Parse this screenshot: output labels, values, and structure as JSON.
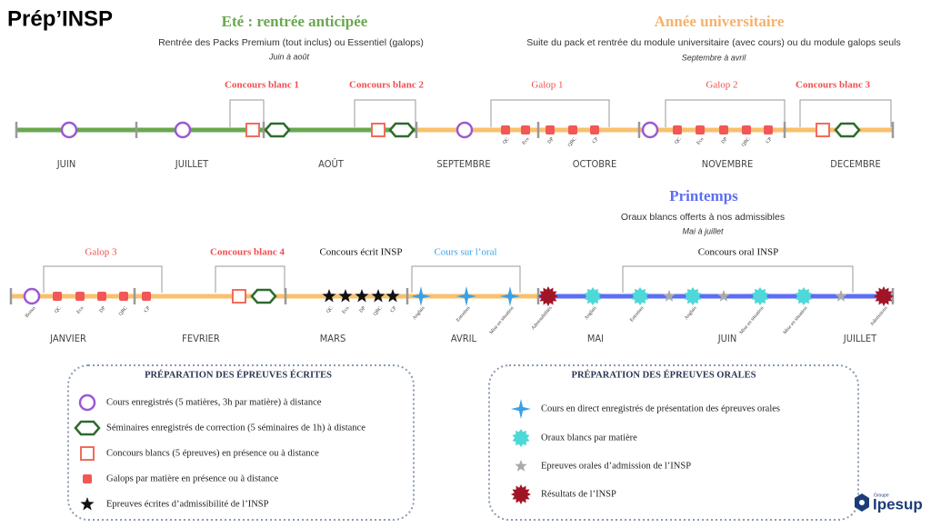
{
  "header": {
    "title": "Prép’INSP"
  },
  "periods": [
    {
      "title": "Eté : rentrée anticipée",
      "subtitle": "Rentrée des Packs Premium (tout inclus) ou  Essentiel (galops)",
      "dates": "Juin à août"
    },
    {
      "title": "Année universitaire",
      "subtitle": "Suite du pack et rentrée du module universitaire (avec cours) ou du module galops seuls",
      "dates": "Septembre à avril"
    },
    {
      "title": "Printemps",
      "subtitle": "Oraux blancs offerts à nos admissibles",
      "dates": "Mai à juillet"
    }
  ],
  "timeline_1": {
    "months": [
      "JUIN",
      "JUILLET",
      "AOÛT",
      "SEPTEMBRE",
      "OCTOBRE",
      "NOVEMBRE",
      "DECEMBRE"
    ],
    "groups": [
      "Concours blanc 1",
      "Concours blanc 2",
      "Galop 1",
      "Galop 2",
      "Concours blanc 3"
    ],
    "labels": [
      "QC",
      "Eco",
      "DP",
      "QRC",
      "CP",
      "QC",
      "Eco",
      "DP",
      "QRC",
      "CP"
    ]
  },
  "timeline_2": {
    "months": [
      "JANVIER",
      "FEVRIER",
      "MARS",
      "AVRIL",
      "MAI",
      "JUIN",
      "JUILLET"
    ],
    "groups": [
      "Galop 3",
      "Concours blanc 4",
      "Concours écrit INSP",
      "Cours sur l’oral",
      "Concours oral INSP"
    ],
    "labels": [
      "Bonus",
      "QC",
      "Eco",
      "DP",
      "QRC",
      "CP",
      "QC",
      "Eco",
      "DP",
      "QRC",
      "CP",
      "Anglais",
      "Entretien",
      "Mise en situation",
      "Admissibilités",
      "Anglais",
      "Entretien",
      "Anglais",
      "Mise en situation",
      "Mise en situation",
      "Admissions"
    ]
  },
  "legend_written": {
    "title": "PRÉPARATION DES ÉPREUVES ÉCRITES",
    "items": [
      "Cours enregistrés (5 matières, 3h par matière) à distance",
      "Séminaires enregistrés de correction (5 séminaires de 1h) à distance",
      "Concours blancs (5 épreuves) en présence ou à distance",
      "Galops par matière en présence ou à distance",
      "Epreuves écrites d’admissibilité de l’INSP"
    ]
  },
  "legend_oral": {
    "title": "PRÉPARATION DES ÉPREUVES ORALES",
    "items": [
      "Cours en direct enregistrés de présentation des épreuves orales",
      "Oraux blancs par matière",
      "Epreuves orales d’admission de l’INSP",
      "Résultats de l’INSP"
    ]
  },
  "logo": {
    "group": "Groupe",
    "name": "Ipesup"
  }
}
